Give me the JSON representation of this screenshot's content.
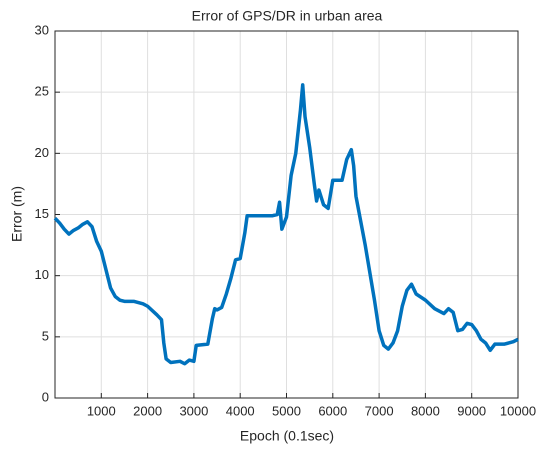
{
  "chart_data": {
    "type": "line",
    "title": "Error of GPS/DR in urban area",
    "xlabel": "Epoch (0.1sec)",
    "ylabel": "Error (m)",
    "x": [
      0,
      100,
      200,
      300,
      400,
      500,
      600,
      700,
      800,
      900,
      1000,
      1100,
      1200,
      1300,
      1400,
      1500,
      1700,
      1900,
      2000,
      2200,
      2300,
      2350,
      2400,
      2500,
      2700,
      2800,
      2900,
      3000,
      3050,
      3300,
      3400,
      3450,
      3500,
      3600,
      3700,
      3800,
      3900,
      4000,
      4100,
      4150,
      4500,
      4700,
      4800,
      4850,
      4900,
      5000,
      5100,
      5200,
      5300,
      5350,
      5400,
      5500,
      5600,
      5650,
      5700,
      5800,
      5900,
      6000,
      6200,
      6300,
      6400,
      6450,
      6500,
      6700,
      6900,
      7000,
      7100,
      7200,
      7300,
      7400,
      7500,
      7600,
      7700,
      7800,
      8000,
      8200,
      8400,
      8500,
      8600,
      8700,
      8800,
      8900,
      9000,
      9100,
      9200,
      9300,
      9400,
      9500,
      9700,
      9800,
      9900,
      10000
    ],
    "series": [
      {
        "name": "Error",
        "color": "#0072bd",
        "values": [
          14.7,
          14.3,
          13.8,
          13.4,
          13.7,
          13.9,
          14.2,
          14.4,
          14.0,
          12.8,
          12.0,
          10.5,
          9.0,
          8.3,
          8.0,
          7.9,
          7.9,
          7.7,
          7.5,
          6.8,
          6.4,
          4.5,
          3.2,
          2.9,
          3.0,
          2.8,
          3.1,
          3.0,
          4.3,
          4.4,
          6.5,
          7.3,
          7.2,
          7.4,
          8.5,
          9.8,
          11.3,
          11.4,
          13.5,
          14.9,
          14.9,
          14.9,
          15.0,
          16.0,
          13.8,
          14.8,
          18.2,
          20.0,
          23.5,
          25.6,
          23.0,
          20.5,
          17.5,
          16.1,
          17.0,
          15.8,
          15.5,
          17.8,
          17.8,
          19.5,
          20.3,
          19.0,
          16.5,
          12.5,
          8.0,
          5.5,
          4.3,
          4.0,
          4.5,
          5.5,
          7.5,
          8.8,
          9.3,
          8.5,
          8.0,
          7.3,
          6.9,
          7.3,
          7.0,
          5.5,
          5.6,
          6.1,
          6.0,
          5.5,
          4.8,
          4.5,
          3.9,
          4.4,
          4.4,
          4.5,
          4.6,
          4.8
        ]
      }
    ],
    "xlim": [
      0,
      10000
    ],
    "xticks": [
      1000,
      2000,
      3000,
      4000,
      5000,
      6000,
      7000,
      8000,
      9000,
      10000
    ],
    "ylim": [
      0,
      30
    ],
    "yticks": [
      0,
      5,
      10,
      15,
      20,
      25,
      30
    ],
    "grid": true
  }
}
